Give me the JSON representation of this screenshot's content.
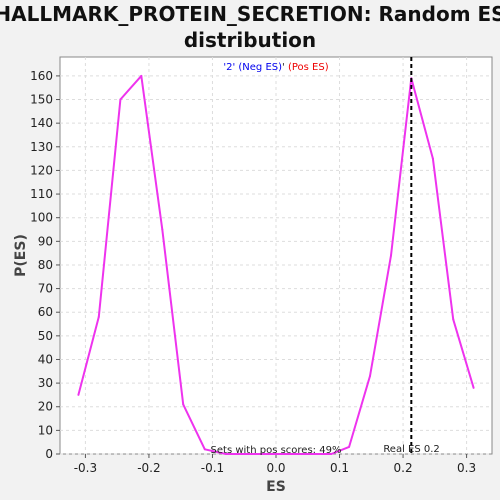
{
  "chart_data": {
    "type": "line",
    "title_lines": [
      "HALLMARK_PROTEIN_SECRETION: Random ES",
      "distribution"
    ],
    "xlabel": "ES",
    "ylabel": "P(ES)",
    "xlim": [
      -0.34,
      0.34
    ],
    "ylim": [
      0,
      168
    ],
    "xticks": [
      -0.3,
      -0.2,
      -0.1,
      0.0,
      0.1,
      0.2,
      0.3
    ],
    "xtick_labels": [
      "-0.3",
      "-0.2",
      "-0.1",
      "0.0",
      "0.1",
      "0.2",
      "0.3"
    ],
    "yticks": [
      0,
      10,
      20,
      30,
      40,
      50,
      60,
      70,
      80,
      90,
      100,
      110,
      120,
      130,
      140,
      150,
      160
    ],
    "ytick_labels": [
      "0",
      "10",
      "20",
      "30",
      "40",
      "50",
      "60",
      "70",
      "80",
      "90",
      "100",
      "110",
      "120",
      "130",
      "140",
      "150",
      "160"
    ],
    "grid": true,
    "legend": {
      "neg_label": "'2' (Neg ES)",
      "pos_label": "(Pos ES)",
      "separator": "' ",
      "neg_color": "#0000ee",
      "pos_color": "#ee0000"
    },
    "series": [
      {
        "color": "#ee33ee",
        "x": [
          -0.311,
          -0.279,
          -0.245,
          -0.212,
          -0.179,
          -0.146,
          -0.112,
          -0.079,
          -0.046,
          -0.012,
          0.021,
          0.054,
          0.087,
          0.115,
          0.148,
          0.181,
          0.213,
          0.247,
          0.279,
          0.311
        ],
        "y": [
          25,
          58,
          150,
          160,
          95,
          21,
          2,
          0,
          0,
          0,
          0,
          0,
          0,
          3,
          33,
          84,
          159,
          125,
          57,
          28
        ]
      }
    ],
    "real_es": {
      "x": 0.213,
      "label": "Real ES 0.2",
      "color": "#000000"
    },
    "annotation": "Sets with pos scores: 49%",
    "background_color": "#ffffff",
    "page_color": "#f2f2f2"
  }
}
